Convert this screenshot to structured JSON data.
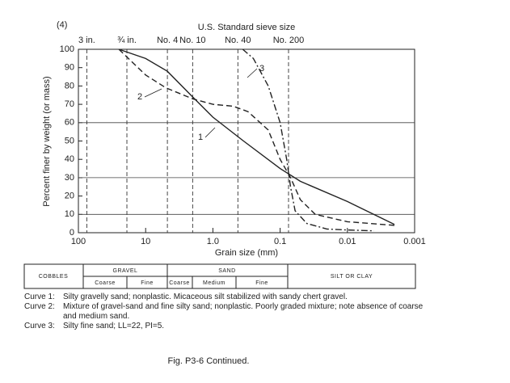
{
  "chart_data": {
    "type": "line",
    "panel": "(4)",
    "top_axis_title": "U.S. Standard sieve size",
    "sieves": [
      {
        "value": 75,
        "label": "3 in."
      },
      {
        "value": 19,
        "label": "¾ in."
      },
      {
        "value": 4.75,
        "label": "No. 4"
      },
      {
        "value": 2,
        "label": "No. 10"
      },
      {
        "value": 0.425,
        "label": "No. 40"
      },
      {
        "value": 0.075,
        "label": "No. 200"
      }
    ],
    "ylabel": "Percent finer by weight (or mass)",
    "xlabel": "Grain size (mm)",
    "xscale": "log",
    "xlim": [
      100,
      0.001
    ],
    "xticks": [
      100,
      10,
      {
        "value": 1,
        "label": "1.0"
      },
      0.1,
      0.01,
      0.001
    ],
    "ylim": [
      0,
      100
    ],
    "yticks": [
      0,
      10,
      20,
      30,
      40,
      50,
      60,
      70,
      80,
      90,
      100
    ],
    "grid_y": [
      10,
      30,
      60
    ],
    "series": [
      {
        "name": "1",
        "color": "#222",
        "dash": "solid",
        "x": [
          25,
          10,
          4.75,
          2,
          1,
          0.35,
          0.1,
          0.05,
          0.01,
          0.002
        ],
        "values": [
          100,
          95,
          88,
          74,
          63,
          50,
          35,
          28,
          17,
          4.5
        ]
      },
      {
        "name": "2",
        "color": "#222",
        "dash": "dashed",
        "x": [
          25,
          10,
          5,
          2,
          1,
          0.5,
          0.3,
          0.15,
          0.1,
          0.07,
          0.05,
          0.03,
          0.01,
          0.002
        ],
        "values": [
          100,
          86,
          79,
          73,
          70,
          69,
          66,
          56,
          40,
          30,
          18,
          10,
          6,
          4
        ]
      },
      {
        "name": "3",
        "color": "#222",
        "dash": "dashdot",
        "x": [
          0.36,
          0.25,
          0.15,
          0.1,
          0.08,
          0.07,
          0.06,
          0.04,
          0.02,
          0.01,
          0.004
        ],
        "values": [
          100,
          95,
          80,
          60,
          40,
          25,
          12,
          5,
          2,
          1.5,
          1
        ]
      }
    ]
  },
  "classification": {
    "cobbles": "COBBLES",
    "gravel": "GRAVEL",
    "gravel_coarse": "Coarse",
    "gravel_fine": "Fine",
    "sand": "SAND",
    "sand_coarse": "Coarse",
    "sand_medium": "Medium",
    "sand_fine": "Fine",
    "silt_clay": "SILT OR CLAY"
  },
  "notes": [
    {
      "label": "Curve 1:",
      "text": "Silty gravelly sand; nonplastic.  Micaceous silt stabilized with sandy chert gravel."
    },
    {
      "label": "Curve 2:",
      "text": "Mixture of gravel-sand and fine silty sand; nonplastic.  Poorly graded mixture; note absence of coarse and medium sand."
    },
    {
      "label": "Curve 3:",
      "text": "Silty fine sand; LL=22, PI=5."
    }
  ],
  "caption": "Fig. P3-6    Continued."
}
